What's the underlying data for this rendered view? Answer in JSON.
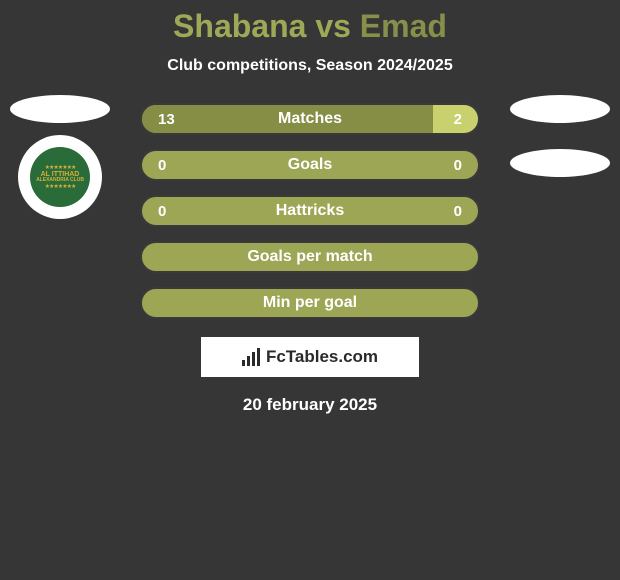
{
  "title": {
    "player1": "Shabana",
    "vs": "vs",
    "player2": "Emad"
  },
  "subtitle": "Club competitions, Season 2024/2025",
  "stats": [
    {
      "label": "Matches",
      "left_val": "13",
      "right_val": "2",
      "left_pct": 86.7,
      "right_pct": 13.3,
      "show_vals": true
    },
    {
      "label": "Goals",
      "left_val": "0",
      "right_val": "0",
      "left_pct": 0,
      "right_pct": 0,
      "show_vals": true
    },
    {
      "label": "Hattricks",
      "left_val": "0",
      "right_val": "0",
      "left_pct": 0,
      "right_pct": 0,
      "show_vals": true
    },
    {
      "label": "Goals per match",
      "left_val": "",
      "right_val": "",
      "left_pct": 0,
      "right_pct": 0,
      "show_vals": false
    },
    {
      "label": "Min per goal",
      "left_val": "",
      "right_val": "",
      "left_pct": 0,
      "right_pct": 0,
      "show_vals": false
    }
  ],
  "watermark": "FcTables.com",
  "date": "20 february 2025",
  "club_logo": {
    "line1": "AL ITTIHAD",
    "line2": "ALEXANDRIA CLUB"
  },
  "colors": {
    "background": "#363636",
    "bar_base": "#9da655",
    "bar_left_fill": "#868e46",
    "bar_right_fill": "#c9d06e",
    "title_p1": "#9fa856",
    "title_p2": "#888f4a",
    "text": "#ffffff"
  }
}
